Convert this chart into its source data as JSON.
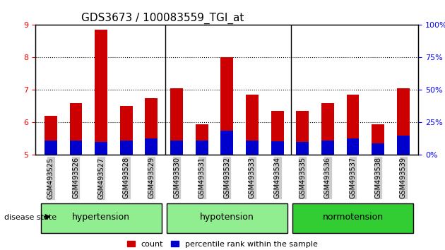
{
  "title": "GDS3673 / 100083559_TGI_at",
  "samples": [
    "GSM493525",
    "GSM493526",
    "GSM493527",
    "GSM493528",
    "GSM493529",
    "GSM493530",
    "GSM493531",
    "GSM493532",
    "GSM493533",
    "GSM493534",
    "GSM493535",
    "GSM493536",
    "GSM493537",
    "GSM493538",
    "GSM493539"
  ],
  "red_values": [
    6.2,
    6.6,
    8.85,
    6.5,
    6.75,
    7.05,
    5.95,
    8.0,
    6.85,
    6.35,
    6.35,
    6.6,
    6.85,
    5.95,
    7.05
  ],
  "blue_values": [
    5.45,
    5.45,
    5.4,
    5.45,
    5.5,
    5.45,
    5.45,
    5.75,
    5.45,
    5.42,
    5.4,
    5.45,
    5.5,
    5.35,
    5.6
  ],
  "ylim": [
    5.0,
    9.0
  ],
  "yticks": [
    5,
    6,
    7,
    8,
    9
  ],
  "y2ticks": [
    0,
    25,
    50,
    75,
    100
  ],
  "y2labels": [
    "0%",
    "25%",
    "50%",
    "75%",
    "100%"
  ],
  "groups": [
    {
      "label": "hypertension",
      "indices": [
        0,
        4
      ],
      "color": "#90EE90"
    },
    {
      "label": "hypotension",
      "indices": [
        5,
        9
      ],
      "color": "#90EE90"
    },
    {
      "label": "normotension",
      "indices": [
        10,
        14
      ],
      "color": "#32CD32"
    }
  ],
  "bar_color_red": "#CC0000",
  "bar_color_blue": "#0000CC",
  "tick_label_bg": "#CCCCCC",
  "legend_count": "count",
  "legend_pct": "percentile rank within the sample",
  "bar_width": 0.5,
  "group_separator_indices": [
    5,
    10
  ],
  "xlabel_color": "#000000",
  "y2_color": "#0000FF"
}
